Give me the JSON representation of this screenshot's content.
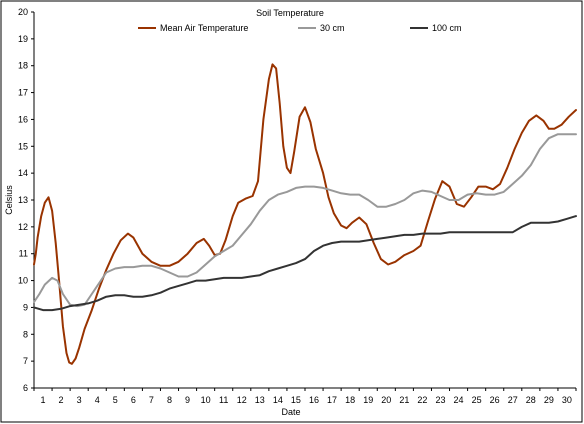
{
  "chart_data": {
    "type": "line",
    "title": "Soil Temperature",
    "xlabel": "Date",
    "ylabel": "Celsius",
    "ylim": [
      6,
      20
    ],
    "xlim": [
      1,
      30
    ],
    "x_ticks": [
      "1",
      "2",
      "3",
      "4",
      "5",
      "6",
      "7",
      "8",
      "9",
      "10",
      "11",
      "12",
      "13",
      "14",
      "15",
      "16",
      "17",
      "18",
      "19",
      "20",
      "21",
      "22",
      "23",
      "24",
      "25",
      "26",
      "27",
      "28",
      "29",
      "30"
    ],
    "y_ticks": [
      "6",
      "7",
      "8",
      "9",
      "10",
      "11",
      "12",
      "13",
      "14",
      "15",
      "16",
      "17",
      "18",
      "19",
      "20"
    ],
    "grid": false,
    "legend": "top",
    "series": [
      {
        "name": "Mean Air Temperature",
        "color": "#993300",
        "points": [
          [
            1,
            10.6
          ],
          [
            1.1,
            11.0
          ],
          [
            1.2,
            11.6
          ],
          [
            1.4,
            12.4
          ],
          [
            1.6,
            12.9
          ],
          [
            1.8,
            13.1
          ],
          [
            2,
            12.6
          ],
          [
            2.2,
            11.4
          ],
          [
            2.4,
            9.9
          ],
          [
            2.6,
            8.3
          ],
          [
            2.8,
            7.3
          ],
          [
            2.95,
            6.95
          ],
          [
            3.1,
            6.9
          ],
          [
            3.3,
            7.1
          ],
          [
            3.5,
            7.5
          ],
          [
            3.8,
            8.2
          ],
          [
            4.2,
            8.9
          ],
          [
            4.6,
            9.7
          ],
          [
            5,
            10.4
          ],
          [
            5.4,
            11.0
          ],
          [
            5.8,
            11.5
          ],
          [
            6.2,
            11.75
          ],
          [
            6.5,
            11.6
          ],
          [
            7,
            11.0
          ],
          [
            7.5,
            10.7
          ],
          [
            8,
            10.55
          ],
          [
            8.5,
            10.55
          ],
          [
            9,
            10.7
          ],
          [
            9.5,
            11.0
          ],
          [
            10,
            11.4
          ],
          [
            10.4,
            11.55
          ],
          [
            10.7,
            11.3
          ],
          [
            11,
            10.95
          ],
          [
            11.3,
            11.0
          ],
          [
            11.6,
            11.5
          ],
          [
            12,
            12.4
          ],
          [
            12.3,
            12.9
          ],
          [
            12.7,
            13.05
          ],
          [
            13.1,
            13.15
          ],
          [
            13.4,
            13.7
          ],
          [
            13.7,
            16.0
          ],
          [
            14,
            17.5
          ],
          [
            14.2,
            18.05
          ],
          [
            14.4,
            17.9
          ],
          [
            14.6,
            16.6
          ],
          [
            14.8,
            15.0
          ],
          [
            15,
            14.2
          ],
          [
            15.2,
            14.0
          ],
          [
            15.4,
            14.8
          ],
          [
            15.7,
            16.1
          ],
          [
            16,
            16.45
          ],
          [
            16.3,
            15.9
          ],
          [
            16.6,
            14.9
          ],
          [
            17,
            14.0
          ],
          [
            17.3,
            13.1
          ],
          [
            17.6,
            12.5
          ],
          [
            18,
            12.05
          ],
          [
            18.3,
            11.95
          ],
          [
            18.6,
            12.15
          ],
          [
            19,
            12.35
          ],
          [
            19.4,
            12.1
          ],
          [
            19.8,
            11.4
          ],
          [
            20.2,
            10.8
          ],
          [
            20.6,
            10.6
          ],
          [
            21,
            10.7
          ],
          [
            21.5,
            10.95
          ],
          [
            22,
            11.1
          ],
          [
            22.4,
            11.3
          ],
          [
            22.8,
            12.2
          ],
          [
            23.2,
            13.05
          ],
          [
            23.6,
            13.7
          ],
          [
            24,
            13.5
          ],
          [
            24.4,
            12.85
          ],
          [
            24.8,
            12.75
          ],
          [
            25.2,
            13.1
          ],
          [
            25.6,
            13.5
          ],
          [
            26,
            13.5
          ],
          [
            26.4,
            13.4
          ],
          [
            26.8,
            13.6
          ],
          [
            27.2,
            14.2
          ],
          [
            27.6,
            14.9
          ],
          [
            28,
            15.5
          ],
          [
            28.4,
            15.95
          ],
          [
            28.8,
            16.15
          ],
          [
            29.2,
            15.95
          ],
          [
            29.5,
            15.65
          ],
          [
            29.8,
            15.65
          ],
          [
            30.2,
            15.8
          ],
          [
            30.6,
            16.1
          ],
          [
            31,
            16.35
          ]
        ]
      },
      {
        "name": "30 cm",
        "color": "#999999",
        "points": [
          [
            1,
            9.2
          ],
          [
            1.3,
            9.5
          ],
          [
            1.6,
            9.85
          ],
          [
            2,
            10.1
          ],
          [
            2.3,
            10.0
          ],
          [
            2.6,
            9.5
          ],
          [
            3,
            9.1
          ],
          [
            3.4,
            9.05
          ],
          [
            3.8,
            9.1
          ],
          [
            4.2,
            9.5
          ],
          [
            4.6,
            9.9
          ],
          [
            5,
            10.3
          ],
          [
            5.5,
            10.45
          ],
          [
            6,
            10.5
          ],
          [
            6.5,
            10.5
          ],
          [
            7,
            10.55
          ],
          [
            7.5,
            10.55
          ],
          [
            8,
            10.45
          ],
          [
            8.5,
            10.3
          ],
          [
            9,
            10.15
          ],
          [
            9.5,
            10.15
          ],
          [
            10,
            10.3
          ],
          [
            10.5,
            10.6
          ],
          [
            11,
            10.9
          ],
          [
            11.5,
            11.1
          ],
          [
            12,
            11.3
          ],
          [
            12.5,
            11.7
          ],
          [
            13,
            12.1
          ],
          [
            13.5,
            12.6
          ],
          [
            14,
            13.0
          ],
          [
            14.5,
            13.2
          ],
          [
            15,
            13.3
          ],
          [
            15.5,
            13.45
          ],
          [
            16,
            13.5
          ],
          [
            16.5,
            13.5
          ],
          [
            17,
            13.45
          ],
          [
            17.5,
            13.35
          ],
          [
            18,
            13.25
          ],
          [
            18.5,
            13.2
          ],
          [
            19,
            13.2
          ],
          [
            19.5,
            13.0
          ],
          [
            20,
            12.75
          ],
          [
            20.5,
            12.75
          ],
          [
            21,
            12.85
          ],
          [
            21.5,
            13.0
          ],
          [
            22,
            13.25
          ],
          [
            22.5,
            13.35
          ],
          [
            23,
            13.3
          ],
          [
            23.5,
            13.15
          ],
          [
            24,
            13.0
          ],
          [
            24.5,
            13.0
          ],
          [
            25,
            13.2
          ],
          [
            25.5,
            13.25
          ],
          [
            26,
            13.2
          ],
          [
            26.5,
            13.2
          ],
          [
            27,
            13.3
          ],
          [
            27.5,
            13.6
          ],
          [
            28,
            13.9
          ],
          [
            28.5,
            14.3
          ],
          [
            29,
            14.9
          ],
          [
            29.5,
            15.3
          ],
          [
            30,
            15.45
          ],
          [
            30.5,
            15.45
          ],
          [
            31,
            15.45
          ]
        ]
      },
      {
        "name": "100 cm",
        "color": "#333333",
        "points": [
          [
            1,
            9.0
          ],
          [
            1.5,
            8.9
          ],
          [
            2,
            8.9
          ],
          [
            2.5,
            8.95
          ],
          [
            3,
            9.05
          ],
          [
            3.5,
            9.1
          ],
          [
            4,
            9.15
          ],
          [
            4.5,
            9.25
          ],
          [
            5,
            9.4
          ],
          [
            5.5,
            9.45
          ],
          [
            6,
            9.45
          ],
          [
            6.5,
            9.4
          ],
          [
            7,
            9.4
          ],
          [
            7.5,
            9.45
          ],
          [
            8,
            9.55
          ],
          [
            8.5,
            9.7
          ],
          [
            9,
            9.8
          ],
          [
            9.5,
            9.9
          ],
          [
            10,
            10.0
          ],
          [
            10.5,
            10.0
          ],
          [
            11,
            10.05
          ],
          [
            11.5,
            10.1
          ],
          [
            12,
            10.1
          ],
          [
            12.5,
            10.1
          ],
          [
            13,
            10.15
          ],
          [
            13.5,
            10.2
          ],
          [
            14,
            10.35
          ],
          [
            14.5,
            10.45
          ],
          [
            15,
            10.55
          ],
          [
            15.5,
            10.65
          ],
          [
            16,
            10.8
          ],
          [
            16.5,
            11.1
          ],
          [
            17,
            11.3
          ],
          [
            17.5,
            11.4
          ],
          [
            18,
            11.45
          ],
          [
            18.5,
            11.45
          ],
          [
            19,
            11.45
          ],
          [
            19.5,
            11.5
          ],
          [
            20,
            11.55
          ],
          [
            20.5,
            11.6
          ],
          [
            21,
            11.65
          ],
          [
            21.5,
            11.7
          ],
          [
            22,
            11.7
          ],
          [
            22.5,
            11.75
          ],
          [
            23,
            11.75
          ],
          [
            23.5,
            11.75
          ],
          [
            24,
            11.8
          ],
          [
            24.5,
            11.8
          ],
          [
            25,
            11.8
          ],
          [
            25.5,
            11.8
          ],
          [
            26,
            11.8
          ],
          [
            26.5,
            11.8
          ],
          [
            27,
            11.8
          ],
          [
            27.5,
            11.8
          ],
          [
            28,
            12.0
          ],
          [
            28.5,
            12.15
          ],
          [
            29,
            12.15
          ],
          [
            29.5,
            12.15
          ],
          [
            30,
            12.2
          ],
          [
            30.5,
            12.3
          ],
          [
            31,
            12.4
          ]
        ]
      }
    ]
  }
}
